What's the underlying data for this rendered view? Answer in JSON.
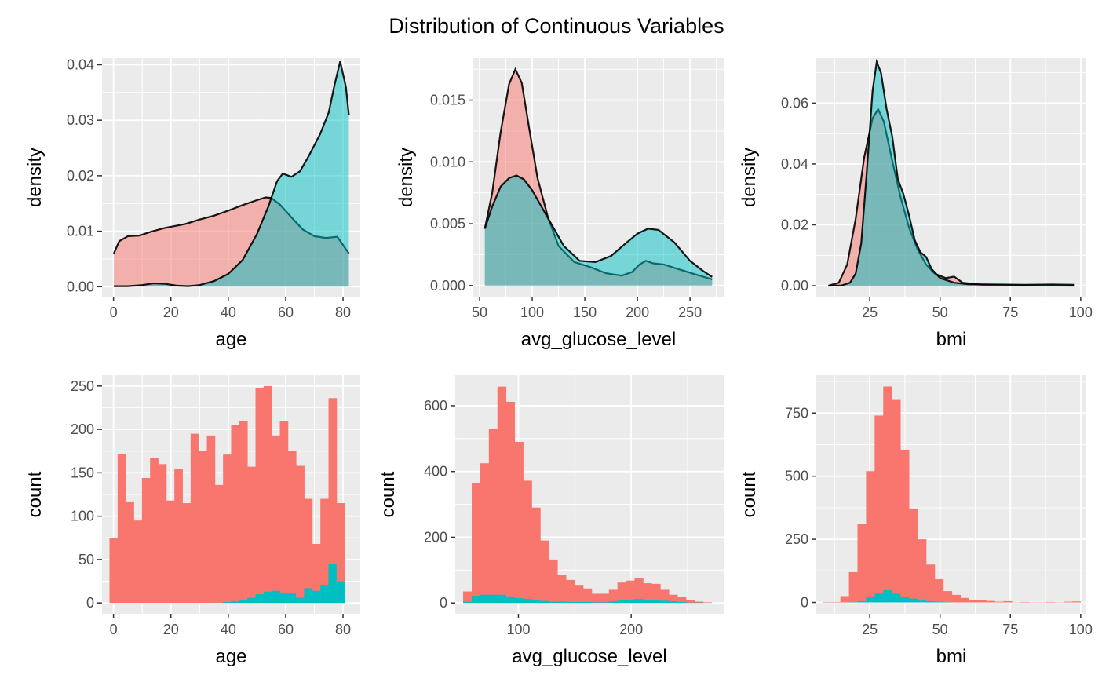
{
  "title": "Distribution of Continuous Variables",
  "colors": {
    "panel_bg": "#EBEBEB",
    "grid": "#FFFFFF",
    "group_0": "#F8766D",
    "group_1": "#00BFC4",
    "outline": "#000000"
  },
  "chart_data": [
    {
      "type": "area",
      "xlabel": "age",
      "ylabel": "density",
      "xlim": [
        -4,
        86
      ],
      "ylim": [
        -0.0018,
        0.0412
      ],
      "xticks": [
        0,
        20,
        40,
        60,
        80
      ],
      "xtick_labels": [
        "0",
        "20",
        "40",
        "60",
        "80"
      ],
      "yticks": [
        0,
        0.01,
        0.02,
        0.03,
        0.04
      ],
      "ytick_labels": [
        "0.00",
        "0.01",
        "0.02",
        "0.03",
        "0.04"
      ],
      "series": [
        {
          "group": 0,
          "x": [
            0.1,
            2,
            5,
            9,
            13,
            18,
            25,
            30,
            35,
            40,
            45,
            50,
            53,
            55,
            58,
            62,
            66,
            70,
            74,
            78,
            82
          ],
          "y": [
            0.006,
            0.0082,
            0.0091,
            0.0092,
            0.0099,
            0.0106,
            0.0113,
            0.0121,
            0.0128,
            0.0137,
            0.0147,
            0.0156,
            0.0161,
            0.016,
            0.0148,
            0.0125,
            0.0103,
            0.0091,
            0.0088,
            0.009,
            0.006
          ]
        },
        {
          "group": 1,
          "x": [
            0.1,
            5,
            10,
            14,
            18,
            22,
            26,
            30,
            35,
            40,
            45,
            50,
            54,
            57,
            59,
            62,
            65,
            68,
            72,
            75,
            77,
            79,
            81,
            82
          ],
          "y": [
            0.0001,
            0.0001,
            0.0003,
            0.0006,
            0.0005,
            0.0002,
            0.0001,
            0.0003,
            0.001,
            0.0023,
            0.0048,
            0.0095,
            0.0145,
            0.019,
            0.0204,
            0.0198,
            0.0208,
            0.0235,
            0.0275,
            0.0314,
            0.0363,
            0.0406,
            0.036,
            0.031
          ]
        }
      ]
    },
    {
      "type": "area",
      "xlabel": "avg_glucose_level",
      "ylabel": "density",
      "xlim": [
        44,
        282
      ],
      "ylim": [
        -0.0009,
        0.0184
      ],
      "xticks": [
        50,
        100,
        150,
        200,
        250
      ],
      "xtick_labels": [
        "50",
        "100",
        "150",
        "200",
        "250"
      ],
      "yticks": [
        0,
        0.005,
        0.01,
        0.015
      ],
      "ytick_labels": [
        "0.000",
        "0.005",
        "0.010",
        "0.015"
      ],
      "series": [
        {
          "group": 0,
          "x": [
            55,
            62,
            70,
            78,
            84,
            90,
            97,
            105,
            115,
            125,
            140,
            155,
            170,
            185,
            195,
            202,
            208,
            215,
            225,
            240,
            255,
            271
          ],
          "y": [
            0.0046,
            0.0075,
            0.0124,
            0.0163,
            0.0175,
            0.0164,
            0.0128,
            0.0087,
            0.0055,
            0.0032,
            0.0019,
            0.0015,
            0.001,
            0.0008,
            0.0011,
            0.0017,
            0.002,
            0.0018,
            0.0017,
            0.0013,
            0.0009,
            0.0005
          ]
        },
        {
          "group": 1,
          "x": [
            55,
            62,
            70,
            78,
            85,
            92,
            100,
            110,
            120,
            130,
            145,
            160,
            175,
            190,
            200,
            210,
            220,
            235,
            250,
            262,
            271
          ],
          "y": [
            0.0046,
            0.0064,
            0.008,
            0.0087,
            0.0089,
            0.0086,
            0.0077,
            0.0062,
            0.0047,
            0.0032,
            0.002,
            0.0019,
            0.0024,
            0.0035,
            0.0042,
            0.0046,
            0.0045,
            0.0035,
            0.002,
            0.0012,
            0.0007
          ]
        }
      ]
    },
    {
      "type": "area",
      "xlabel": "bmi",
      "ylabel": "density",
      "xlim": [
        6,
        102
      ],
      "ylim": [
        -0.0036,
        0.0748
      ],
      "xticks": [
        25,
        50,
        75,
        100
      ],
      "xtick_labels": [
        "25",
        "50",
        "75",
        "100"
      ],
      "yticks": [
        0,
        0.02,
        0.04,
        0.06
      ],
      "ytick_labels": [
        "0.00",
        "0.02",
        "0.04",
        "0.06"
      ],
      "series": [
        {
          "group": 0,
          "x": [
            10.3,
            14,
            17,
            20,
            23,
            26,
            28,
            30,
            33,
            36,
            39,
            42,
            45,
            48,
            52,
            55,
            58,
            65,
            80,
            97.6
          ],
          "y": [
            0.0,
            0.001,
            0.007,
            0.022,
            0.042,
            0.055,
            0.058,
            0.054,
            0.041,
            0.029,
            0.019,
            0.012,
            0.007,
            0.004,
            0.0025,
            0.003,
            0.001,
            0.0003,
            0.0001,
            0.0
          ]
        },
        {
          "group": 1,
          "x": [
            10.3,
            15,
            18,
            20,
            22,
            24,
            26,
            27.5,
            29,
            31,
            33,
            35,
            37,
            39,
            41,
            43,
            45,
            47,
            50,
            55,
            60,
            70,
            80,
            90,
            97.6
          ],
          "y": [
            0.0,
            0.0001,
            0.001,
            0.004,
            0.014,
            0.038,
            0.064,
            0.0735,
            0.07,
            0.058,
            0.049,
            0.035,
            0.03,
            0.023,
            0.015,
            0.011,
            0.0095,
            0.0055,
            0.0025,
            0.001,
            0.0005,
            0.0004,
            0.0003,
            0.0004,
            0.0003
          ]
        }
      ]
    },
    {
      "type": "bar",
      "xlabel": "age",
      "ylabel": "count",
      "xlim": [
        -4,
        86
      ],
      "ylim": [
        -12.5,
        262.5
      ],
      "xticks": [
        0,
        20,
        40,
        60,
        80
      ],
      "xtick_labels": [
        "0",
        "20",
        "40",
        "60",
        "80"
      ],
      "yticks": [
        0,
        50,
        100,
        150,
        200,
        250
      ],
      "ytick_labels": [
        "0",
        "50",
        "100",
        "150",
        "200",
        "250"
      ],
      "bin_start": -1.4,
      "bin_width": 2.827,
      "stacked_totals": [
        75,
        172,
        117,
        95,
        144,
        167,
        160,
        118,
        154,
        115,
        195,
        175,
        193,
        136,
        171,
        205,
        210,
        157,
        248,
        250,
        193,
        210,
        175,
        158,
        120,
        68,
        120,
        236,
        115
      ],
      "group_1_counts": [
        0,
        0,
        0,
        0,
        0,
        0,
        0,
        0,
        0,
        0,
        0,
        0,
        0,
        0,
        1,
        2,
        3,
        6,
        10,
        13,
        14,
        12,
        11,
        6,
        17,
        14,
        21,
        45,
        25
      ]
    },
    {
      "type": "bar",
      "xlabel": "avg_glucose_level",
      "ylabel": "count",
      "xlim": [
        44,
        282
      ],
      "ylim": [
        -33,
        693
      ],
      "xticks": [
        100,
        200
      ],
      "xtick_labels": [
        "100",
        "200"
      ],
      "yticks": [
        0,
        200,
        400,
        600
      ],
      "ytick_labels": [
        "0",
        "200",
        "400",
        "600"
      ],
      "bin_start": 51,
      "bin_width": 7.6,
      "stacked_totals": [
        35,
        365,
        425,
        530,
        658,
        612,
        490,
        372,
        290,
        190,
        132,
        86,
        70,
        55,
        44,
        28,
        28,
        40,
        62,
        68,
        76,
        60,
        58,
        40,
        25,
        18,
        8,
        4,
        2
      ],
      "group_1_counts": [
        4,
        22,
        25,
        25,
        25,
        20,
        15,
        12,
        8,
        6,
        4,
        4,
        3,
        3,
        3,
        2,
        2,
        5,
        8,
        10,
        12,
        10,
        9,
        7,
        5,
        3,
        1,
        1,
        0
      ]
    },
    {
      "type": "bar",
      "xlabel": "bmi",
      "ylabel": "count",
      "xlim": [
        6,
        102
      ],
      "ylim": [
        -45,
        900
      ],
      "xticks": [
        25,
        50,
        75,
        100
      ],
      "xtick_labels": [
        "25",
        "50",
        "75",
        "100"
      ],
      "yticks": [
        0,
        250,
        500,
        750
      ],
      "ytick_labels": [
        "0",
        "250",
        "500",
        "750"
      ],
      "bin_start": 8.45,
      "bin_width": 3.05,
      "stacked_totals": [
        2,
        2,
        25,
        120,
        310,
        520,
        740,
        855,
        805,
        605,
        372,
        250,
        150,
        92,
        45,
        30,
        18,
        10,
        8,
        6,
        3,
        5,
        1,
        2,
        1,
        1,
        2,
        1,
        3,
        4
      ],
      "group_1_counts": [
        0,
        0,
        0,
        1,
        5,
        22,
        35,
        48,
        35,
        22,
        15,
        10,
        5,
        3,
        1,
        0,
        0,
        0,
        0,
        0,
        0,
        0,
        0,
        0,
        0,
        0,
        0,
        0,
        0,
        0
      ]
    }
  ]
}
